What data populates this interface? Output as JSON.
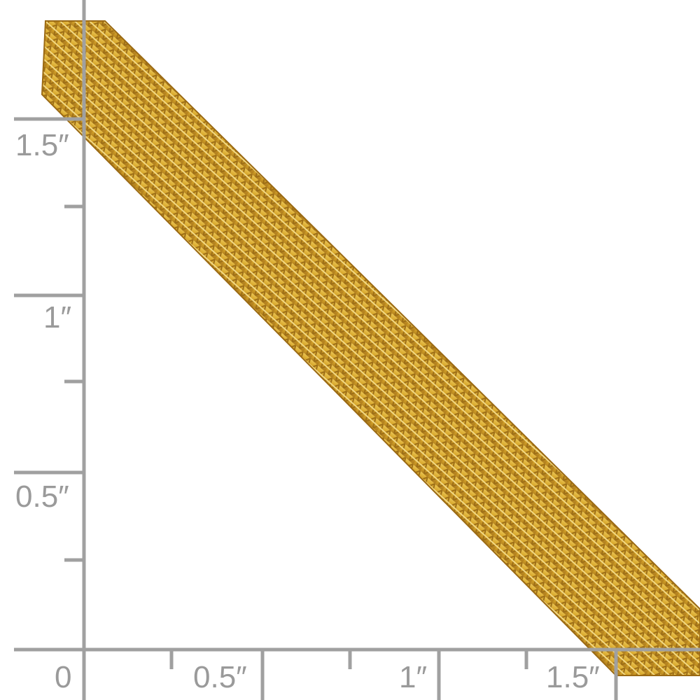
{
  "ruler": {
    "color": "#a0a0a0",
    "unit": "inch",
    "vertical_labels": [
      "1.5″",
      "1″",
      "0.5″"
    ],
    "horizontal_labels": [
      "0",
      "0.5″",
      "1″",
      "1.5″"
    ]
  },
  "product": {
    "type": "gold mesh chain bracelet",
    "color": "#d9a82a"
  }
}
